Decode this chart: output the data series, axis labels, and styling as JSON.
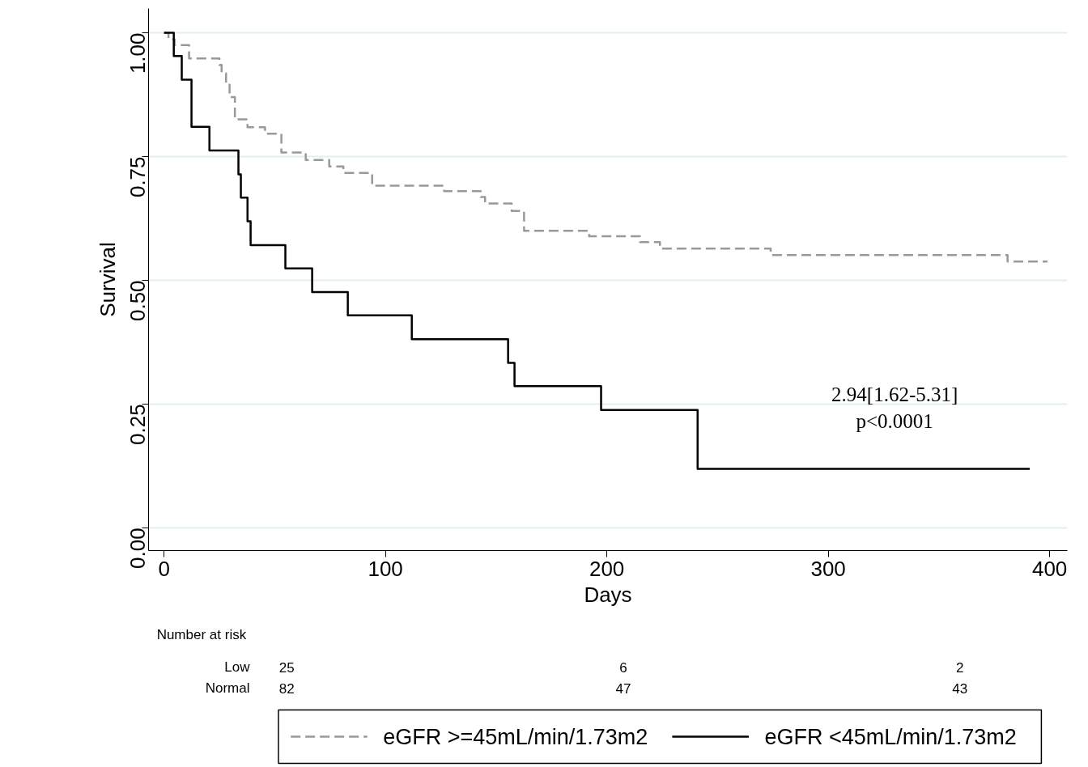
{
  "chart_data": {
    "type": "step",
    "xlabel": "Days",
    "ylabel": "Survival",
    "xlim": [
      -7,
      408
    ],
    "ylim": [
      -0.046,
      1.049
    ],
    "xticks": [
      0,
      100,
      200,
      300,
      400
    ],
    "yticks": [
      {
        "value": 0,
        "label": "0.00"
      },
      {
        "value": 0.25,
        "label": "0.25"
      },
      {
        "value": 0.5,
        "label": "0.50"
      },
      {
        "value": 0.75,
        "label": "0.75"
      },
      {
        "value": 1,
        "label": "1.00"
      }
    ],
    "grid": "y",
    "legend": "bottom",
    "series": [
      {
        "name": "eGFR >=45mL/min/1.73m2",
        "color": "#999999",
        "line_style": "dashed",
        "x": [
          0,
          2,
          4.8,
          11.3,
          25,
          26,
          28,
          29.6,
          32,
          37.7,
          45.6,
          53,
          64,
          74.6,
          81,
          94,
          126.5,
          143,
          145,
          157,
          162.6,
          192,
          215,
          224,
          274,
          381,
          399
        ],
        "values": [
          1,
          0.987,
          0.975,
          0.948,
          0.935,
          0.918,
          0.895,
          0.87,
          0.825,
          0.809,
          0.796,
          0.758,
          0.743,
          0.73,
          0.717,
          0.691,
          0.68,
          0.668,
          0.655,
          0.64,
          0.6,
          0.589,
          0.577,
          0.564,
          0.551,
          0.538,
          0.538
        ]
      },
      {
        "name": "eGFR <45mL/min/1.73m2",
        "color": "#000000",
        "line_style": "solid",
        "x": [
          0,
          4.4,
          8,
          12.4,
          20.5,
          33.6,
          34.7,
          37.7,
          39.1,
          54.8,
          66.9,
          83,
          111.9,
          155.4,
          158.3,
          197.4,
          241,
          391
        ],
        "values": [
          1,
          0.953,
          0.905,
          0.81,
          0.762,
          0.714,
          0.667,
          0.619,
          0.571,
          0.524,
          0.476,
          0.429,
          0.381,
          0.333,
          0.286,
          0.238,
          0.119,
          0.119
        ]
      }
    ],
    "annotations": [
      "2.94[1.62-5.31]",
      "p<0.0001",
      "Number at risk",
      "Low",
      "25",
      "6",
      "2",
      "Normal",
      "82",
      "47",
      "43"
    ]
  }
}
